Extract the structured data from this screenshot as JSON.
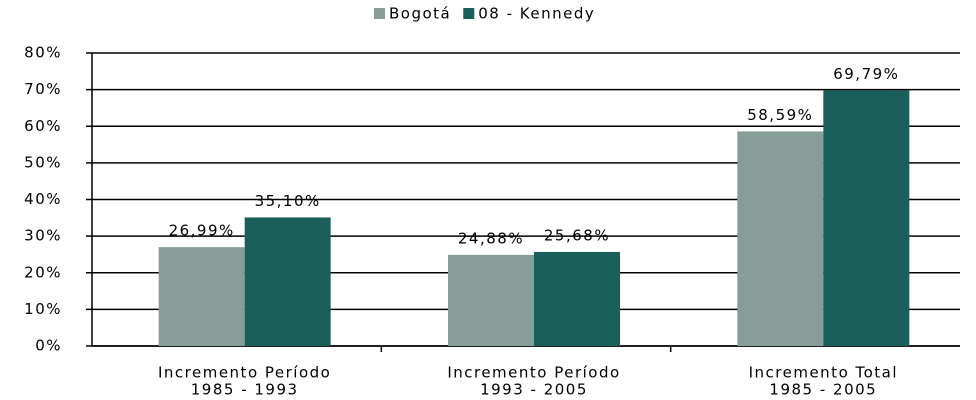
{
  "chart_data": {
    "type": "bar",
    "categories": [
      [
        "Incremento Período",
        "1985 - 1993"
      ],
      [
        "Incremento Período",
        "1993 - 2005"
      ],
      [
        "Incremento Total",
        "1985 - 2005"
      ]
    ],
    "series": [
      {
        "name": "Bogotá",
        "color": "#879e98",
        "values": [
          26.99,
          24.88,
          58.59
        ],
        "value_labels": [
          "26,99%",
          "24,88%",
          "58,59%"
        ]
      },
      {
        "name": "08 - Kennedy",
        "color": "#1a5f5a",
        "values": [
          35.1,
          25.68,
          69.79
        ],
        "value_labels": [
          "35,10%",
          "25,68%",
          "69,79%"
        ]
      }
    ],
    "ylim": [
      0,
      80
    ],
    "yticks": [
      {
        "value": 0,
        "label": "0%"
      },
      {
        "value": 10,
        "label": "10%"
      },
      {
        "value": 20,
        "label": "20%"
      },
      {
        "value": 30,
        "label": "30%"
      },
      {
        "value": 40,
        "label": "40%"
      },
      {
        "value": 50,
        "label": "50%"
      },
      {
        "value": 60,
        "label": "60%"
      },
      {
        "value": 70,
        "label": "70%"
      },
      {
        "value": 80,
        "label": "80%"
      }
    ],
    "grid": true,
    "legend": "top"
  }
}
